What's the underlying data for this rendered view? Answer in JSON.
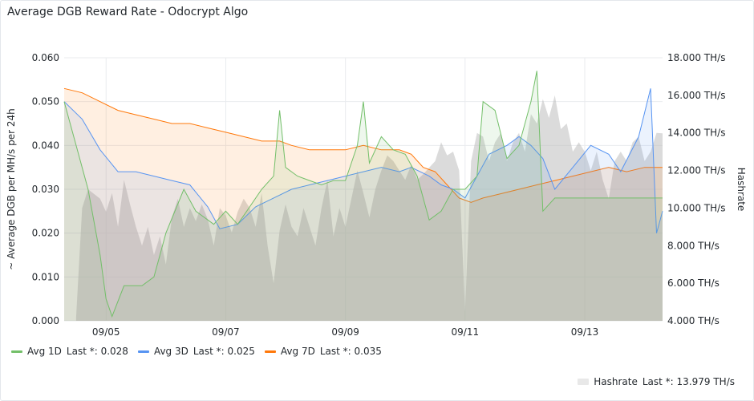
{
  "panel": {
    "title": "Average DGB Reward Rate - Odocrypt Algo"
  },
  "colors": {
    "avg1d": "#73bf69",
    "avg3d": "#5794f2",
    "avg7d": "#ff780a",
    "hashrate": "#bdbdbd"
  },
  "legend": {
    "items": [
      {
        "label": "Avg 1D",
        "stat": "Last *: 0.028",
        "color": "#73bf69"
      },
      {
        "label": "Avg 3D",
        "stat": "Last *: 0.025",
        "color": "#5794f2"
      },
      {
        "label": "Avg 7D",
        "stat": "Last *: 0.035",
        "color": "#ff780a"
      }
    ],
    "hashrate": {
      "label": "Hashrate",
      "stat": "Last *: 13.979 TH/s",
      "color": "#e8e8e8"
    }
  },
  "chart_data": {
    "type": "line",
    "ylabel": "~ Average DGB per MH/s per 24h",
    "y2label": "Hashrate",
    "ylim": [
      0,
      0.06
    ],
    "y2lim": [
      4,
      18
    ],
    "xlim": [
      4.3,
      14.3
    ],
    "y_ticks": [
      "0.000",
      "0.010",
      "0.020",
      "0.030",
      "0.040",
      "0.050",
      "0.060"
    ],
    "y2_ticks": [
      "4.000 TH/s",
      "6.000 TH/s",
      "8.000 TH/s",
      "10.000 TH/s",
      "12.000 TH/s",
      "14.000 TH/s",
      "16.000 TH/s",
      "18.000 TH/s"
    ],
    "x_ticks": [
      {
        "label": "09/05",
        "x": 5
      },
      {
        "label": "09/07",
        "x": 7
      },
      {
        "label": "09/09",
        "x": 9
      },
      {
        "label": "09/11",
        "x": 11
      },
      {
        "label": "09/13",
        "x": 13
      }
    ],
    "grid": true,
    "legend_position": "bottom",
    "series": [
      {
        "name": "Avg 1D",
        "color": "#73bf69",
        "axis": "left",
        "points": [
          [
            4.3,
            0.05
          ],
          [
            4.5,
            0.04
          ],
          [
            4.7,
            0.03
          ],
          [
            4.9,
            0.015
          ],
          [
            5.0,
            0.005
          ],
          [
            5.1,
            0.001
          ],
          [
            5.3,
            0.008
          ],
          [
            5.6,
            0.008
          ],
          [
            5.8,
            0.01
          ],
          [
            5.9,
            0.015
          ],
          [
            6.0,
            0.02
          ],
          [
            6.3,
            0.03
          ],
          [
            6.5,
            0.025
          ],
          [
            6.8,
            0.022
          ],
          [
            7.0,
            0.025
          ],
          [
            7.2,
            0.022
          ],
          [
            7.4,
            0.026
          ],
          [
            7.6,
            0.03
          ],
          [
            7.8,
            0.033
          ],
          [
            7.9,
            0.048
          ],
          [
            8.0,
            0.035
          ],
          [
            8.2,
            0.033
          ],
          [
            8.4,
            0.032
          ],
          [
            8.6,
            0.031
          ],
          [
            8.8,
            0.032
          ],
          [
            9.0,
            0.032
          ],
          [
            9.2,
            0.04
          ],
          [
            9.3,
            0.05
          ],
          [
            9.4,
            0.036
          ],
          [
            9.6,
            0.042
          ],
          [
            9.8,
            0.039
          ],
          [
            10.0,
            0.038
          ],
          [
            10.2,
            0.033
          ],
          [
            10.4,
            0.023
          ],
          [
            10.6,
            0.025
          ],
          [
            10.8,
            0.03
          ],
          [
            11.0,
            0.03
          ],
          [
            11.2,
            0.033
          ],
          [
            11.3,
            0.05
          ],
          [
            11.5,
            0.048
          ],
          [
            11.7,
            0.037
          ],
          [
            11.9,
            0.04
          ],
          [
            12.1,
            0.05
          ],
          [
            12.2,
            0.057
          ],
          [
            12.3,
            0.025
          ],
          [
            12.5,
            0.028
          ],
          [
            12.8,
            0.028
          ],
          [
            13.2,
            0.028
          ],
          [
            13.6,
            0.028
          ],
          [
            14.0,
            0.028
          ],
          [
            14.3,
            0.028
          ]
        ]
      },
      {
        "name": "Avg 3D",
        "color": "#5794f2",
        "axis": "left",
        "points": [
          [
            4.3,
            0.05
          ],
          [
            4.6,
            0.046
          ],
          [
            4.9,
            0.039
          ],
          [
            5.2,
            0.034
          ],
          [
            5.5,
            0.034
          ],
          [
            5.8,
            0.033
          ],
          [
            6.1,
            0.032
          ],
          [
            6.4,
            0.031
          ],
          [
            6.7,
            0.026
          ],
          [
            6.9,
            0.021
          ],
          [
            7.2,
            0.022
          ],
          [
            7.5,
            0.026
          ],
          [
            7.8,
            0.028
          ],
          [
            8.1,
            0.03
          ],
          [
            8.4,
            0.031
          ],
          [
            8.7,
            0.032
          ],
          [
            9.0,
            0.033
          ],
          [
            9.3,
            0.034
          ],
          [
            9.6,
            0.035
          ],
          [
            9.9,
            0.034
          ],
          [
            10.1,
            0.035
          ],
          [
            10.4,
            0.033
          ],
          [
            10.6,
            0.031
          ],
          [
            10.8,
            0.03
          ],
          [
            11.0,
            0.028
          ],
          [
            11.2,
            0.033
          ],
          [
            11.4,
            0.038
          ],
          [
            11.7,
            0.04
          ],
          [
            11.9,
            0.042
          ],
          [
            12.1,
            0.04
          ],
          [
            12.3,
            0.037
          ],
          [
            12.5,
            0.03
          ],
          [
            12.8,
            0.035
          ],
          [
            13.1,
            0.04
          ],
          [
            13.4,
            0.038
          ],
          [
            13.6,
            0.034
          ],
          [
            13.9,
            0.042
          ],
          [
            14.1,
            0.053
          ],
          [
            14.2,
            0.02
          ],
          [
            14.3,
            0.025
          ]
        ]
      },
      {
        "name": "Avg 7D",
        "color": "#ff780a",
        "axis": "left",
        "points": [
          [
            4.3,
            0.053
          ],
          [
            4.6,
            0.052
          ],
          [
            4.9,
            0.05
          ],
          [
            5.2,
            0.048
          ],
          [
            5.5,
            0.047
          ],
          [
            5.8,
            0.046
          ],
          [
            6.1,
            0.045
          ],
          [
            6.4,
            0.045
          ],
          [
            6.7,
            0.044
          ],
          [
            7.0,
            0.043
          ],
          [
            7.3,
            0.042
          ],
          [
            7.6,
            0.041
          ],
          [
            7.9,
            0.041
          ],
          [
            8.1,
            0.04
          ],
          [
            8.4,
            0.039
          ],
          [
            8.7,
            0.039
          ],
          [
            9.0,
            0.039
          ],
          [
            9.3,
            0.04
          ],
          [
            9.6,
            0.039
          ],
          [
            9.9,
            0.039
          ],
          [
            10.1,
            0.038
          ],
          [
            10.3,
            0.035
          ],
          [
            10.5,
            0.034
          ],
          [
            10.7,
            0.031
          ],
          [
            10.9,
            0.028
          ],
          [
            11.1,
            0.027
          ],
          [
            11.3,
            0.028
          ],
          [
            11.6,
            0.029
          ],
          [
            11.9,
            0.03
          ],
          [
            12.2,
            0.031
          ],
          [
            12.5,
            0.032
          ],
          [
            12.8,
            0.033
          ],
          [
            13.1,
            0.034
          ],
          [
            13.4,
            0.035
          ],
          [
            13.7,
            0.034
          ],
          [
            14.0,
            0.035
          ],
          [
            14.3,
            0.035
          ]
        ]
      },
      {
        "name": "Hashrate",
        "color": "#bdbdbd",
        "axis": "right",
        "points": [
          [
            4.5,
            4.2
          ],
          [
            4.6,
            10.0
          ],
          [
            4.7,
            11.0
          ],
          [
            4.9,
            10.5
          ],
          [
            5.0,
            9.8
          ],
          [
            5.1,
            10.8
          ],
          [
            5.2,
            9.0
          ],
          [
            5.3,
            11.5
          ],
          [
            5.4,
            10.2
          ],
          [
            5.5,
            9.0
          ],
          [
            5.6,
            8.0
          ],
          [
            5.7,
            9.0
          ],
          [
            5.8,
            7.5
          ],
          [
            5.9,
            8.5
          ],
          [
            6.0,
            7.0
          ],
          [
            6.1,
            9.5
          ],
          [
            6.2,
            10.5
          ],
          [
            6.3,
            9.0
          ],
          [
            6.4,
            10.0
          ],
          [
            6.5,
            9.3
          ],
          [
            6.6,
            10.2
          ],
          [
            6.7,
            9.4
          ],
          [
            6.8,
            8.0
          ],
          [
            6.9,
            10.0
          ],
          [
            7.0,
            9.6
          ],
          [
            7.1,
            8.7
          ],
          [
            7.2,
            9.8
          ],
          [
            7.3,
            10.5
          ],
          [
            7.4,
            10.0
          ],
          [
            7.5,
            9.0
          ],
          [
            7.6,
            10.8
          ],
          [
            7.7,
            8.0
          ],
          [
            7.8,
            6.0
          ],
          [
            7.9,
            8.8
          ],
          [
            8.0,
            10.2
          ],
          [
            8.1,
            9.0
          ],
          [
            8.2,
            8.5
          ],
          [
            8.3,
            10.0
          ],
          [
            8.4,
            9.0
          ],
          [
            8.5,
            8.0
          ],
          [
            8.6,
            10.0
          ],
          [
            8.7,
            11.5
          ],
          [
            8.8,
            8.5
          ],
          [
            8.9,
            10.0
          ],
          [
            9.0,
            9.0
          ],
          [
            9.1,
            10.5
          ],
          [
            9.2,
            12.0
          ],
          [
            9.3,
            10.8
          ],
          [
            9.4,
            9.5
          ],
          [
            9.5,
            11.0
          ],
          [
            9.6,
            12.0
          ],
          [
            9.7,
            12.8
          ],
          [
            9.8,
            12.5
          ],
          [
            9.9,
            12.0
          ],
          [
            10.0,
            11.5
          ],
          [
            10.1,
            12.3
          ],
          [
            10.2,
            11.5
          ],
          [
            10.3,
            11.8
          ],
          [
            10.5,
            12.5
          ],
          [
            10.6,
            13.5
          ],
          [
            10.7,
            12.8
          ],
          [
            10.8,
            13.0
          ],
          [
            10.9,
            12.0
          ],
          [
            11.0,
            4.5
          ],
          [
            11.1,
            12.5
          ],
          [
            11.2,
            14.0
          ],
          [
            11.3,
            13.8
          ],
          [
            11.4,
            12.5
          ],
          [
            11.5,
            13.5
          ],
          [
            11.6,
            14.0
          ],
          [
            11.7,
            12.5
          ],
          [
            11.8,
            13.5
          ],
          [
            11.9,
            14.0
          ],
          [
            12.0,
            13.0
          ],
          [
            12.1,
            15.0
          ],
          [
            12.2,
            14.5
          ],
          [
            12.3,
            15.8
          ],
          [
            12.4,
            14.8
          ],
          [
            12.5,
            16.0
          ],
          [
            12.6,
            14.2
          ],
          [
            12.7,
            14.5
          ],
          [
            12.8,
            13.0
          ],
          [
            12.9,
            13.5
          ],
          [
            13.0,
            13.0
          ],
          [
            13.1,
            12.0
          ],
          [
            13.2,
            13.0
          ],
          [
            13.3,
            11.5
          ],
          [
            13.4,
            10.5
          ],
          [
            13.5,
            12.5
          ],
          [
            13.6,
            13.0
          ],
          [
            13.7,
            12.5
          ],
          [
            13.8,
            13.5
          ],
          [
            13.9,
            13.8
          ],
          [
            14.0,
            12.5
          ],
          [
            14.1,
            13.0
          ],
          [
            14.2,
            14.0
          ],
          [
            14.3,
            13.979
          ]
        ]
      }
    ]
  }
}
